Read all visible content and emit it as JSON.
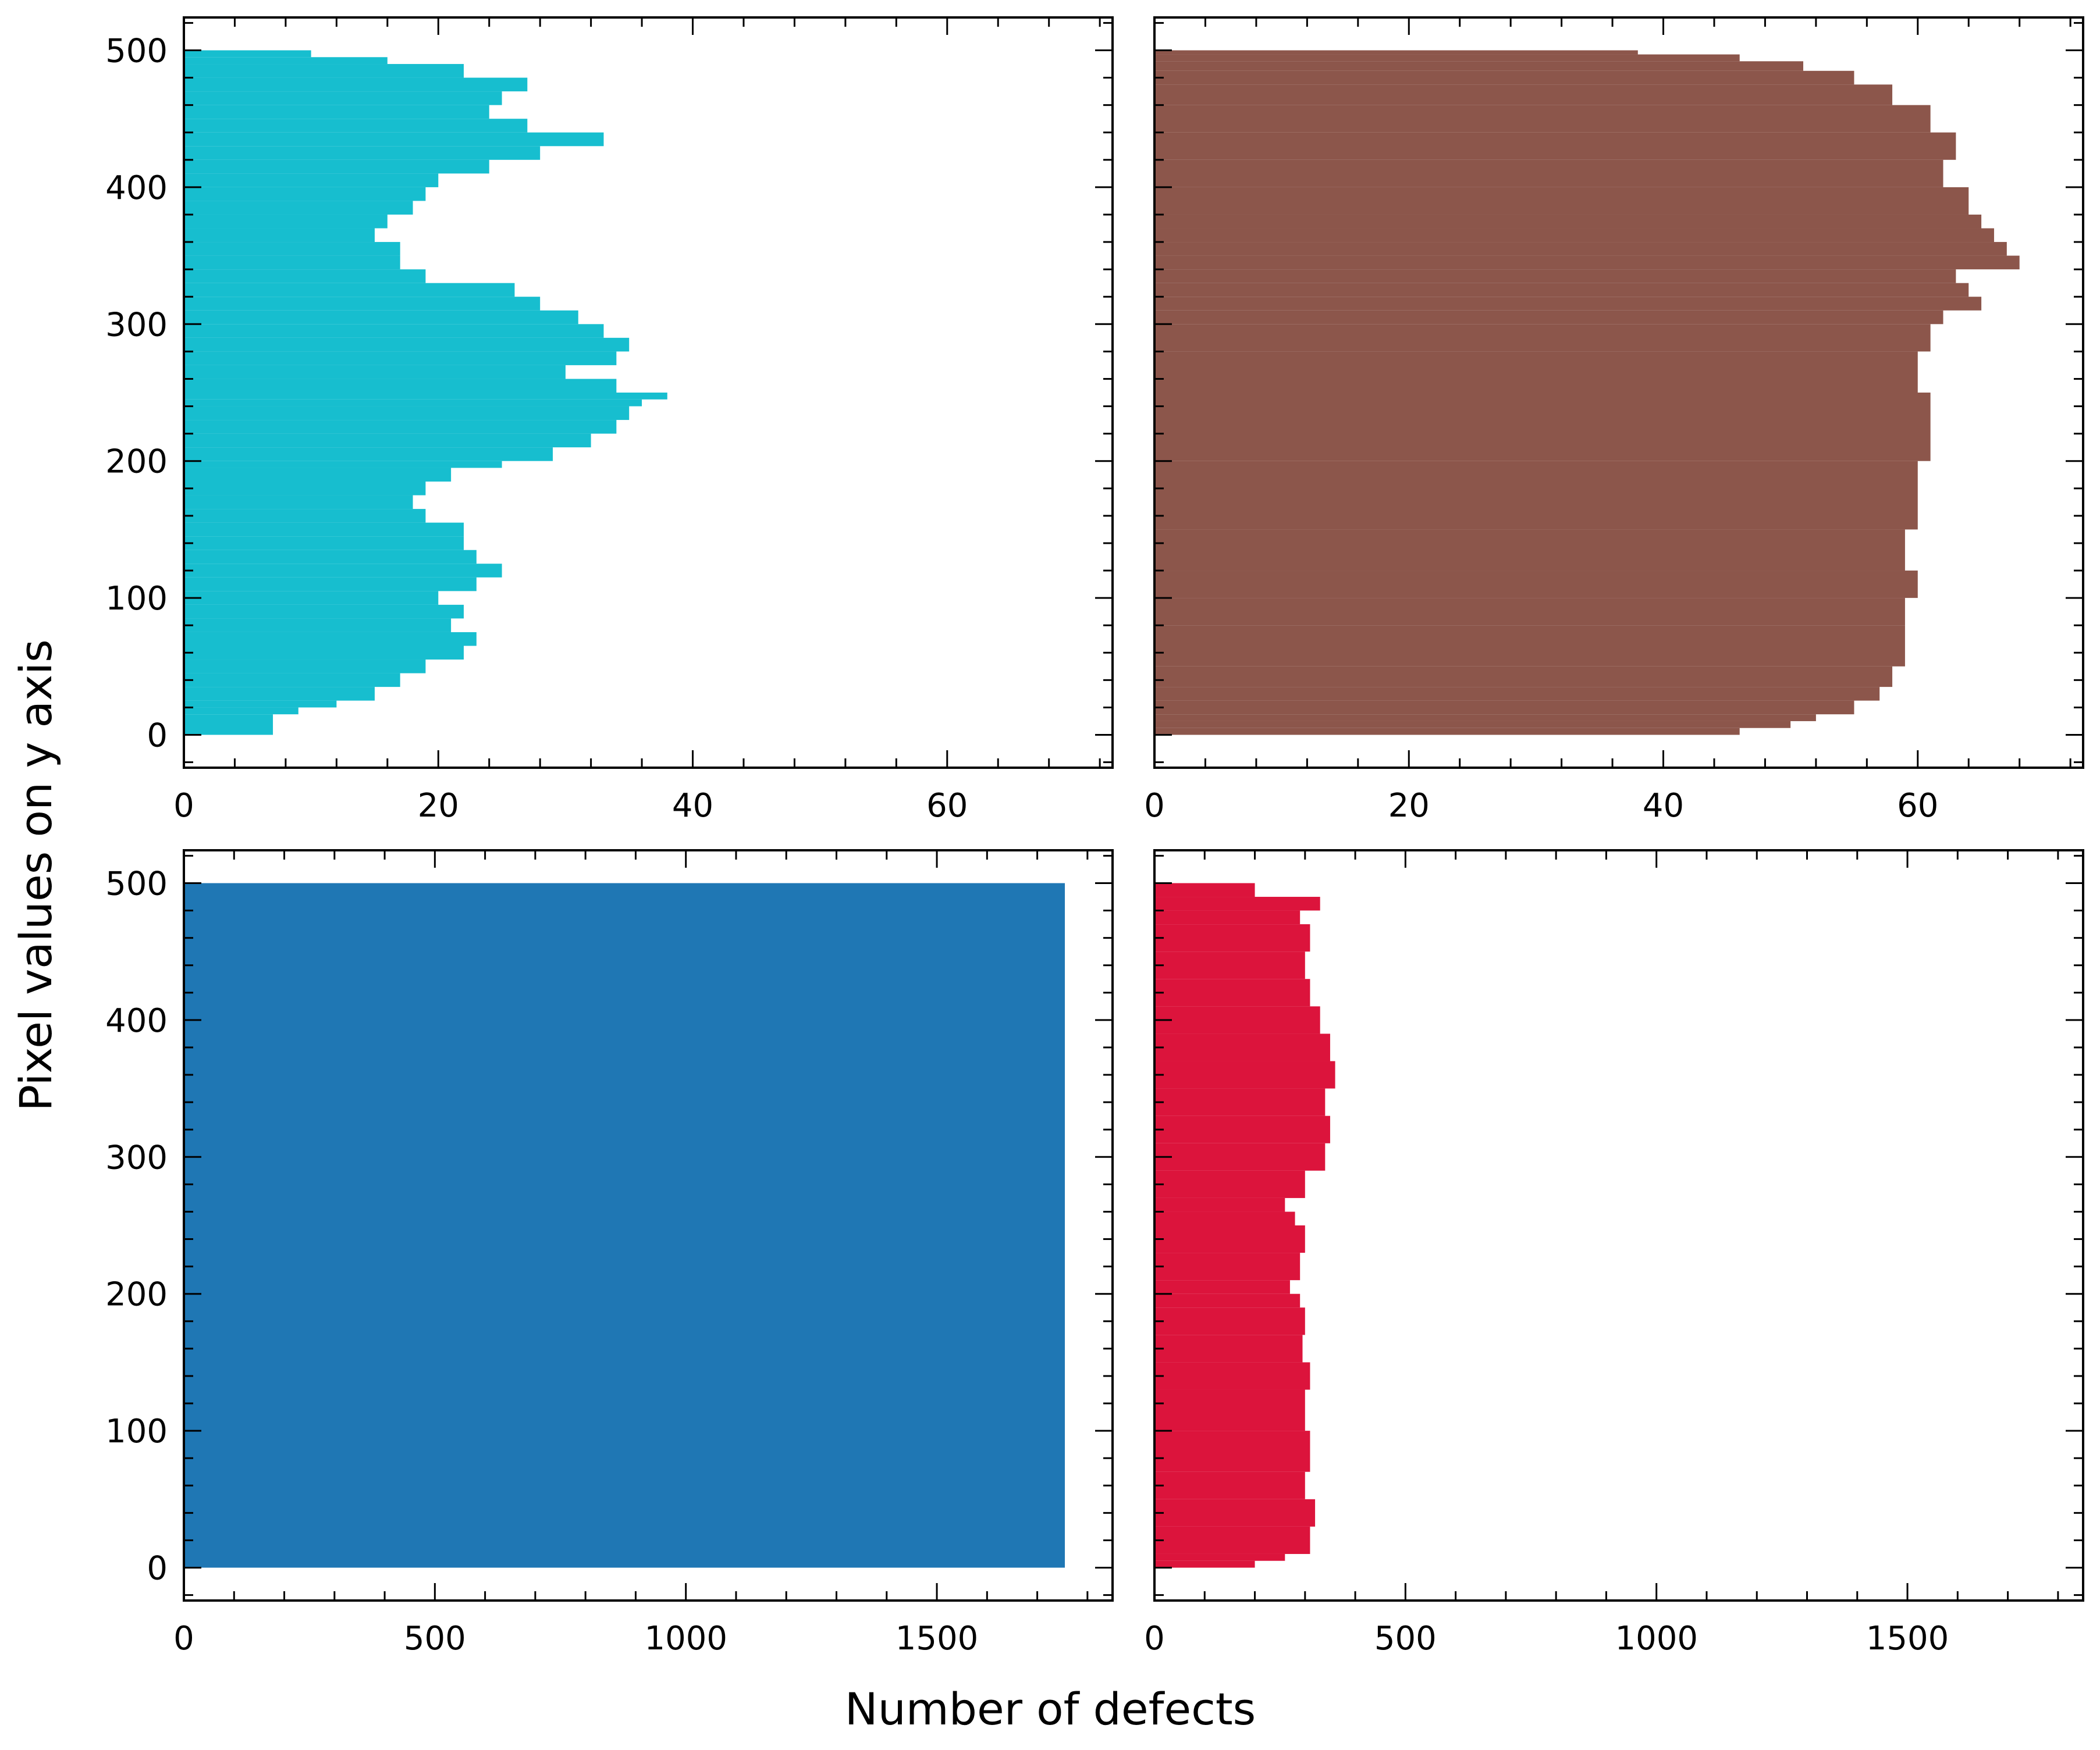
{
  "figure": {
    "xlabel": "Number of defects",
    "ylabel": "Pixel values on y axis"
  },
  "chart_data": [
    {
      "type": "bar",
      "orientation": "horizontal",
      "position": "top-left",
      "color": "#17becf",
      "xlim": [
        0,
        73
      ],
      "ylim": [
        -24,
        524
      ],
      "xticks": [
        0,
        20,
        40,
        60
      ],
      "yticks": [
        0,
        100,
        200,
        300,
        400,
        500
      ],
      "profile": [
        [
          0,
          7
        ],
        [
          15,
          9
        ],
        [
          20,
          12
        ],
        [
          25,
          15
        ],
        [
          35,
          17
        ],
        [
          45,
          19
        ],
        [
          55,
          22
        ],
        [
          65,
          23
        ],
        [
          75,
          21
        ],
        [
          85,
          22
        ],
        [
          95,
          20
        ],
        [
          105,
          23
        ],
        [
          115,
          25
        ],
        [
          125,
          23
        ],
        [
          135,
          22
        ],
        [
          145,
          22
        ],
        [
          155,
          19
        ],
        [
          165,
          18
        ],
        [
          175,
          19
        ],
        [
          185,
          21
        ],
        [
          195,
          25
        ],
        [
          200,
          29
        ],
        [
          210,
          32
        ],
        [
          220,
          34
        ],
        [
          230,
          35
        ],
        [
          240,
          36
        ],
        [
          245,
          38
        ],
        [
          250,
          34
        ],
        [
          260,
          30
        ],
        [
          270,
          34
        ],
        [
          280,
          35
        ],
        [
          290,
          33
        ],
        [
          300,
          31
        ],
        [
          310,
          28
        ],
        [
          320,
          26
        ],
        [
          330,
          19
        ],
        [
          340,
          17
        ],
        [
          350,
          17
        ],
        [
          360,
          15
        ],
        [
          370,
          16
        ],
        [
          380,
          18
        ],
        [
          390,
          19
        ],
        [
          400,
          20
        ],
        [
          410,
          24
        ],
        [
          420,
          28
        ],
        [
          430,
          33
        ],
        [
          440,
          27
        ],
        [
          450,
          24
        ],
        [
          460,
          25
        ],
        [
          470,
          27
        ],
        [
          480,
          22
        ],
        [
          490,
          16
        ],
        [
          495,
          10
        ],
        [
          500,
          0
        ]
      ]
    },
    {
      "type": "bar",
      "orientation": "horizontal",
      "position": "top-right",
      "color": "#8c564b",
      "xlim": [
        0,
        73
      ],
      "ylim": [
        -24,
        524
      ],
      "xticks": [
        0,
        20,
        40,
        60
      ],
      "yticks": [
        0,
        100,
        200,
        300,
        400,
        500
      ],
      "profile": [
        [
          0,
          46
        ],
        [
          5,
          50
        ],
        [
          10,
          52
        ],
        [
          15,
          55
        ],
        [
          25,
          57
        ],
        [
          35,
          58
        ],
        [
          50,
          59
        ],
        [
          80,
          59
        ],
        [
          100,
          60
        ],
        [
          120,
          59
        ],
        [
          150,
          60
        ],
        [
          200,
          61
        ],
        [
          250,
          60
        ],
        [
          280,
          61
        ],
        [
          300,
          62
        ],
        [
          310,
          65
        ],
        [
          320,
          64
        ],
        [
          330,
          63
        ],
        [
          340,
          68
        ],
        [
          350,
          67
        ],
        [
          360,
          66
        ],
        [
          370,
          65
        ],
        [
          380,
          64
        ],
        [
          400,
          62
        ],
        [
          420,
          63
        ],
        [
          440,
          61
        ],
        [
          460,
          58
        ],
        [
          475,
          55
        ],
        [
          485,
          51
        ],
        [
          492,
          46
        ],
        [
          497,
          38
        ],
        [
          500,
          0
        ]
      ]
    },
    {
      "type": "bar",
      "orientation": "horizontal",
      "position": "bottom-left",
      "color": "#1f77b4",
      "xlim": [
        0,
        1850
      ],
      "ylim": [
        -24,
        524
      ],
      "xticks": [
        0,
        500,
        1000,
        1500
      ],
      "yticks": [
        0,
        100,
        200,
        300,
        400,
        500
      ],
      "profile": [
        [
          0,
          1755
        ],
        [
          500,
          1755
        ]
      ]
    },
    {
      "type": "bar",
      "orientation": "horizontal",
      "position": "bottom-right",
      "color": "#dc143c",
      "xlim": [
        0,
        1850
      ],
      "ylim": [
        -24,
        524
      ],
      "xticks": [
        0,
        500,
        1000,
        1500
      ],
      "yticks": [
        0,
        100,
        200,
        300,
        400,
        500
      ],
      "profile": [
        [
          0,
          200
        ],
        [
          5,
          260
        ],
        [
          10,
          310
        ],
        [
          30,
          320
        ],
        [
          50,
          300
        ],
        [
          70,
          310
        ],
        [
          100,
          300
        ],
        [
          130,
          310
        ],
        [
          150,
          295
        ],
        [
          170,
          300
        ],
        [
          190,
          290
        ],
        [
          200,
          270
        ],
        [
          210,
          290
        ],
        [
          230,
          300
        ],
        [
          250,
          280
        ],
        [
          260,
          260
        ],
        [
          270,
          300
        ],
        [
          290,
          340
        ],
        [
          310,
          350
        ],
        [
          330,
          340
        ],
        [
          350,
          360
        ],
        [
          370,
          350
        ],
        [
          390,
          330
        ],
        [
          410,
          310
        ],
        [
          430,
          300
        ],
        [
          450,
          310
        ],
        [
          470,
          290
        ],
        [
          480,
          330
        ],
        [
          490,
          200
        ],
        [
          500,
          0
        ]
      ]
    }
  ]
}
